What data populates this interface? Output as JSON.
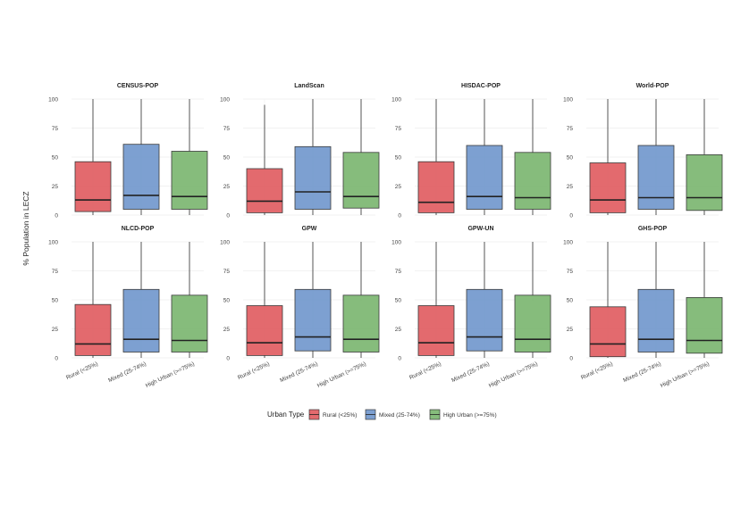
{
  "chart_data": {
    "type": "boxplot",
    "ylabel": "% Population in LECZ",
    "ylim": [
      0,
      100
    ],
    "yticks": [
      0,
      25,
      50,
      75,
      100
    ],
    "categories": [
      "Rural (<25%)",
      "Mixed (25-74%)",
      "High Urban (>=75%)"
    ],
    "colors": [
      "#e05a5e",
      "#6f96cc",
      "#79b56e"
    ],
    "legend": {
      "title": "Urban Type",
      "placement": "bottom",
      "entries": [
        "Rural (<25%)",
        "Mixed (25-74%)",
        "High Urban (>=75%)"
      ]
    },
    "grid": true,
    "panels": [
      {
        "title": "CENSUS-POP",
        "boxes": [
          {
            "min": 0,
            "q1": 3,
            "median": 13,
            "q3": 46,
            "max": 100
          },
          {
            "min": 0,
            "q1": 5,
            "median": 17,
            "q3": 61,
            "max": 100
          },
          {
            "min": 0,
            "q1": 5,
            "median": 16,
            "q3": 55,
            "max": 100
          }
        ]
      },
      {
        "title": "LandScan",
        "boxes": [
          {
            "min": 0,
            "q1": 2,
            "median": 12,
            "q3": 40,
            "max": 95
          },
          {
            "min": 0,
            "q1": 5,
            "median": 20,
            "q3": 59,
            "max": 100
          },
          {
            "min": 0,
            "q1": 6,
            "median": 16,
            "q3": 54,
            "max": 100
          }
        ]
      },
      {
        "title": "HISDAC-POP",
        "boxes": [
          {
            "min": 0,
            "q1": 2,
            "median": 11,
            "q3": 46,
            "max": 100
          },
          {
            "min": 0,
            "q1": 5,
            "median": 16,
            "q3": 60,
            "max": 100
          },
          {
            "min": 0,
            "q1": 5,
            "median": 15,
            "q3": 54,
            "max": 100
          }
        ]
      },
      {
        "title": "World-POP",
        "boxes": [
          {
            "min": 0,
            "q1": 2,
            "median": 13,
            "q3": 45,
            "max": 100
          },
          {
            "min": 0,
            "q1": 5,
            "median": 15,
            "q3": 60,
            "max": 100
          },
          {
            "min": 0,
            "q1": 4,
            "median": 15,
            "q3": 52,
            "max": 100
          }
        ]
      },
      {
        "title": "NLCD-POP",
        "boxes": [
          {
            "min": 0,
            "q1": 2,
            "median": 12,
            "q3": 46,
            "max": 100
          },
          {
            "min": 0,
            "q1": 5,
            "median": 16,
            "q3": 59,
            "max": 100
          },
          {
            "min": 0,
            "q1": 5,
            "median": 15,
            "q3": 54,
            "max": 100
          }
        ]
      },
      {
        "title": "GPW",
        "boxes": [
          {
            "min": 0,
            "q1": 2,
            "median": 13,
            "q3": 45,
            "max": 100
          },
          {
            "min": 0,
            "q1": 6,
            "median": 18,
            "q3": 59,
            "max": 100
          },
          {
            "min": 0,
            "q1": 5,
            "median": 16,
            "q3": 54,
            "max": 100
          }
        ]
      },
      {
        "title": "GPW-UN",
        "boxes": [
          {
            "min": 0,
            "q1": 2,
            "median": 13,
            "q3": 45,
            "max": 100
          },
          {
            "min": 0,
            "q1": 6,
            "median": 18,
            "q3": 59,
            "max": 100
          },
          {
            "min": 0,
            "q1": 5,
            "median": 16,
            "q3": 54,
            "max": 100
          }
        ]
      },
      {
        "title": "GHS-POP",
        "boxes": [
          {
            "min": 0,
            "q1": 1,
            "median": 12,
            "q3": 44,
            "max": 100
          },
          {
            "min": 0,
            "q1": 5,
            "median": 16,
            "q3": 59,
            "max": 100
          },
          {
            "min": 0,
            "q1": 4,
            "median": 15,
            "q3": 52,
            "max": 100
          }
        ]
      }
    ]
  }
}
